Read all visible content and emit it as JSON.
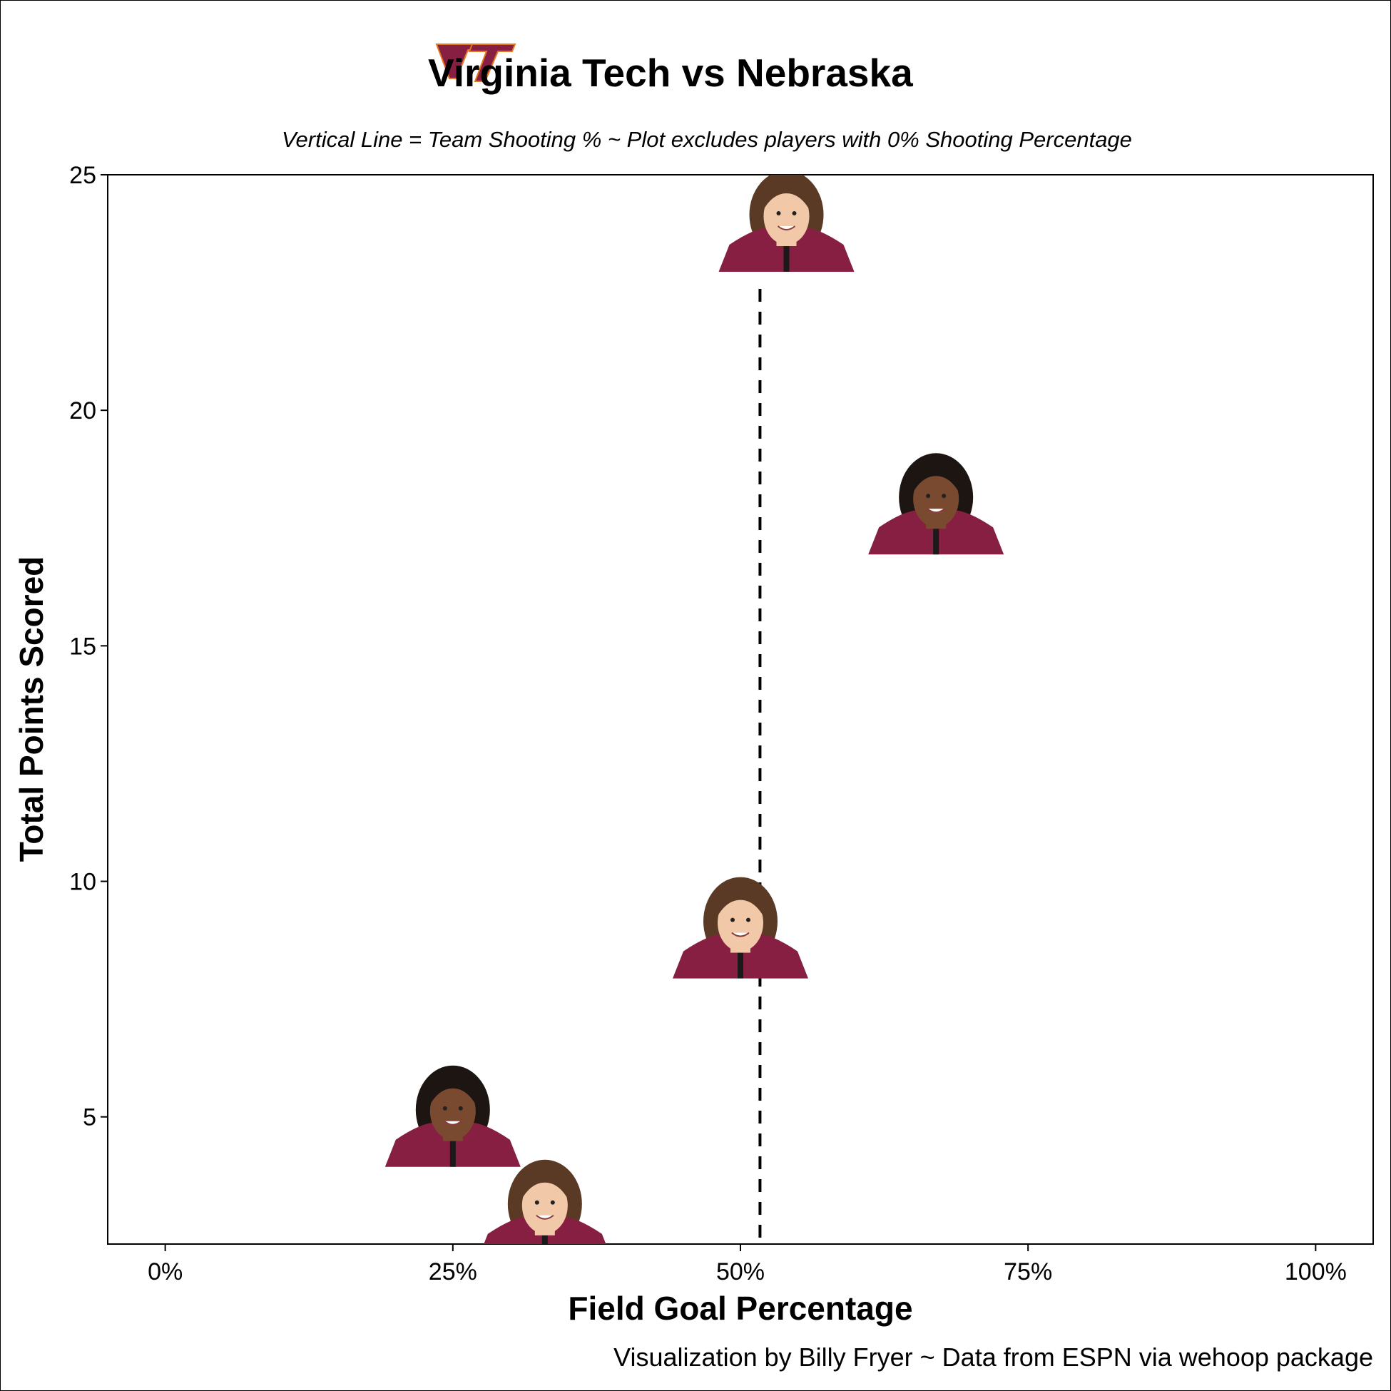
{
  "header": {
    "title": "Virginia Tech vs Nebraska",
    "subtitle": "Vertical Line = Team Shooting % ~ Plot excludes players with 0% Shooting Percentage",
    "logo_text": "VT"
  },
  "footer": {
    "caption": "Visualization by Billy Fryer ~ Data from ESPN via wehoop package"
  },
  "colors": {
    "maroon": "#861F41",
    "maroon_dark": "#6b1832",
    "orange_outline": "#E5751F",
    "skin_light": "#f1c9a8",
    "skin_dark": "#7a4a30",
    "hair_brown": "#5a3a24",
    "hair_black": "#1d1512"
  },
  "chart_data": {
    "type": "scatter",
    "xlabel": "Field Goal Percentage",
    "ylabel": "Total Points Scored",
    "xlim": [
      -0.05,
      1.05
    ],
    "ylim": [
      2.3,
      25
    ],
    "x_ticks": [
      0,
      0.25,
      0.5,
      0.75,
      1.0
    ],
    "x_tick_labels": [
      "0%",
      "25%",
      "50%",
      "75%",
      "100%"
    ],
    "y_ticks": [
      5,
      10,
      15,
      20,
      25
    ],
    "y_tick_labels": [
      "5",
      "10",
      "15",
      "20",
      "25"
    ],
    "grid": false,
    "reference_line": {
      "x": 0.517,
      "style": "dashed",
      "label": "Team Shooting %"
    },
    "points": [
      {
        "x": 0.54,
        "y": 24,
        "marker": "player-headshot",
        "skin": "light",
        "hair": "brown"
      },
      {
        "x": 0.67,
        "y": 18,
        "marker": "player-headshot",
        "skin": "dark",
        "hair": "black"
      },
      {
        "x": 0.5,
        "y": 9,
        "marker": "player-headshot",
        "skin": "light",
        "hair": "brown"
      },
      {
        "x": 0.25,
        "y": 5,
        "marker": "player-headshot",
        "skin": "dark",
        "hair": "black"
      },
      {
        "x": 0.33,
        "y": 3,
        "marker": "player-headshot",
        "skin": "light",
        "hair": "brown"
      }
    ]
  }
}
